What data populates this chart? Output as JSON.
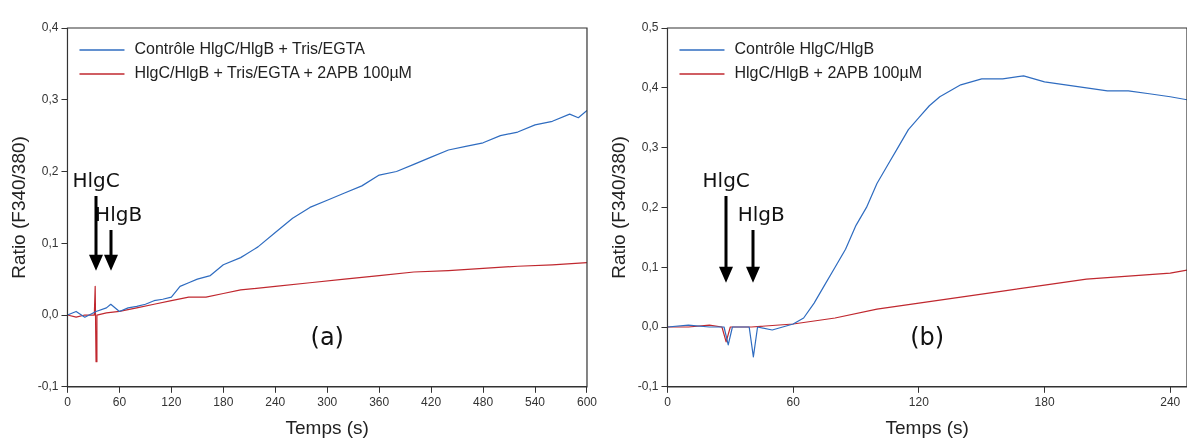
{
  "chart_data": [
    {
      "type": "line",
      "xlabel": "Temps (s)",
      "ylabel": "Ratio (F340/380)",
      "xlim": [
        0,
        600
      ],
      "xticks": [
        0,
        60,
        120,
        180,
        240,
        300,
        360,
        420,
        480,
        540,
        600
      ],
      "ylim": [
        -0.1,
        0.4
      ],
      "yticks": [
        {
          "value": -0.1,
          "label": "-0,1"
        },
        {
          "value": 0,
          "label": "0,0"
        },
        {
          "value": 0.1,
          "label": "0,1"
        },
        {
          "value": 0.2,
          "label": "0,2"
        },
        {
          "value": 0.3,
          "label": "0,3"
        },
        {
          "value": 0.4,
          "label": "0,4"
        }
      ],
      "grid": false,
      "legend": "top left",
      "marker": "none",
      "line_style": "solid",
      "series": [
        {
          "name": "Contrôle HlgC/HlgB + Tris/EGTA",
          "color": "#2f6cc0",
          "x": [
            0,
            10,
            20,
            33,
            45,
            50,
            60,
            70,
            80,
            90,
            100,
            110,
            120,
            130,
            140,
            150,
            165,
            180,
            200,
            220,
            240,
            260,
            280,
            300,
            320,
            340,
            360,
            380,
            400,
            420,
            440,
            460,
            480,
            500,
            520,
            540,
            560,
            580,
            590,
            600
          ],
          "values": [
            0,
            0.005,
            -0.003,
            0.005,
            0.01,
            0.015,
            0.005,
            0.01,
            0.012,
            0.015,
            0.02,
            0.022,
            0.025,
            0.04,
            0.045,
            0.05,
            0.055,
            0.07,
            0.08,
            0.095,
            0.115,
            0.135,
            0.15,
            0.16,
            0.17,
            0.18,
            0.195,
            0.2,
            0.21,
            0.22,
            0.23,
            0.235,
            0.24,
            0.25,
            0.255,
            0.265,
            0.27,
            0.28,
            0.275,
            0.285
          ]
        },
        {
          "name": "HlgC/HlgB + Tris/EGTA + 2APB 100µM",
          "color": "#c0282f",
          "x": [
            0,
            10,
            20,
            31,
            32,
            33,
            34,
            45,
            60,
            80,
            100,
            120,
            140,
            160,
            180,
            200,
            240,
            280,
            320,
            360,
            400,
            440,
            480,
            520,
            560,
            600
          ],
          "values": [
            0,
            -0.003,
            0,
            0,
            0.04,
            -0.065,
            0,
            0.003,
            0.005,
            0.01,
            0.015,
            0.02,
            0.025,
            0.025,
            0.03,
            0.035,
            0.04,
            0.045,
            0.05,
            0.055,
            0.06,
            0.062,
            0.065,
            0.068,
            0.07,
            0.073
          ]
        }
      ],
      "annotations": [
        "HlgC",
        "HlgB",
        "(a)"
      ]
    },
    {
      "type": "line",
      "xlabel": "Temps (s)",
      "ylabel": "Ratio (F340/380)",
      "xlim": [
        0,
        248
      ],
      "xticks": [
        0,
        60,
        120,
        180,
        240
      ],
      "ylim": [
        -0.1,
        0.5
      ],
      "yticks": [
        {
          "value": -0.1,
          "label": "-0,1"
        },
        {
          "value": 0,
          "label": "0,0"
        },
        {
          "value": 0.1,
          "label": "0,1"
        },
        {
          "value": 0.2,
          "label": "0,2"
        },
        {
          "value": 0.3,
          "label": "0,3"
        },
        {
          "value": 0.4,
          "label": "0,4"
        },
        {
          "value": 0.5,
          "label": "0,5"
        }
      ],
      "grid": false,
      "legend": "top left",
      "marker": "none",
      "line_style": "solid",
      "series": [
        {
          "name": "Contrôle HlgC/HlgB",
          "color": "#2f6cc0",
          "x": [
            0,
            10,
            20,
            27,
            29,
            31,
            39,
            41,
            43,
            50,
            60,
            65,
            70,
            75,
            80,
            85,
            90,
            95,
            100,
            105,
            110,
            115,
            120,
            125,
            130,
            135,
            140,
            150,
            160,
            170,
            180,
            190,
            200,
            210,
            220,
            230,
            240,
            248
          ],
          "values": [
            0,
            0.003,
            0,
            0,
            -0.03,
            0,
            0,
            -0.05,
            0,
            -0.005,
            0.005,
            0.015,
            0.04,
            0.07,
            0.1,
            0.13,
            0.17,
            0.2,
            0.24,
            0.27,
            0.3,
            0.33,
            0.35,
            0.37,
            0.385,
            0.395,
            0.405,
            0.415,
            0.415,
            0.42,
            0.41,
            0.405,
            0.4,
            0.395,
            0.395,
            0.39,
            0.385,
            0.38
          ]
        },
        {
          "name": "HlgC/HlgB + 2APB 100µM",
          "color": "#c0282f",
          "x": [
            0,
            10,
            20,
            26,
            28,
            30,
            40,
            60,
            80,
            100,
            120,
            140,
            160,
            180,
            200,
            220,
            240,
            248
          ],
          "values": [
            0,
            0,
            0.003,
            0,
            -0.025,
            0,
            0,
            0.005,
            0.015,
            0.03,
            0.04,
            0.05,
            0.06,
            0.07,
            0.08,
            0.085,
            0.09,
            0.095
          ]
        }
      ],
      "annotations": [
        "HlgC",
        "HlgB",
        "(b)"
      ]
    }
  ]
}
